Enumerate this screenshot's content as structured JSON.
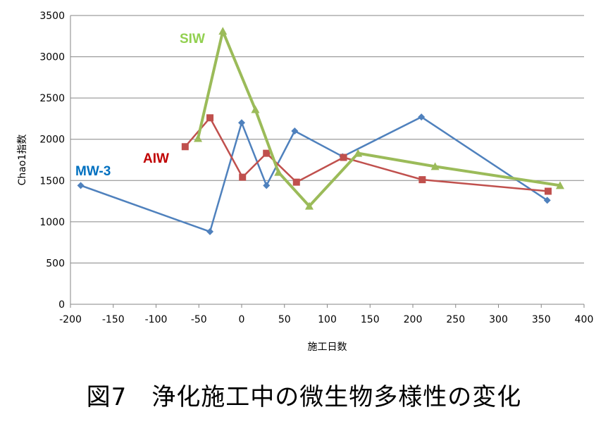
{
  "chart_data": {
    "type": "line",
    "title": "図7　浄化施工中の微生物多様性の変化",
    "xlabel": "施工日数",
    "ylabel": "Chao1指数",
    "xlim": [
      -200,
      400
    ],
    "ylim": [
      0,
      3500
    ],
    "xticks": [
      -200,
      -150,
      -100,
      -50,
      0,
      50,
      100,
      150,
      200,
      250,
      300,
      350,
      400
    ],
    "yticks": [
      0,
      500,
      1000,
      1500,
      2000,
      2500,
      3000,
      3500
    ],
    "grid": "horizontal",
    "legend": "inline labels",
    "series": [
      {
        "name": "MW-3",
        "color": "#4F81BD",
        "marker": "diamond",
        "label_color": "#0070C0",
        "x": [
          -188,
          -37,
          0,
          29,
          62,
          118,
          210,
          357
        ],
        "y": [
          1440,
          880,
          2200,
          1440,
          2100,
          1790,
          2270,
          1260
        ]
      },
      {
        "name": "AIW",
        "color": "#C0504D",
        "marker": "square",
        "label_color": "#C00000",
        "x": [
          -66,
          -37,
          1,
          29,
          64,
          119,
          211,
          358
        ],
        "y": [
          1910,
          2260,
          1540,
          1830,
          1480,
          1780,
          1510,
          1370
        ]
      },
      {
        "name": "SIW",
        "color": "#9BBB59",
        "marker": "triangle",
        "label_color": "#92D050",
        "x": [
          -51,
          -22,
          16,
          43,
          79,
          136,
          226,
          372
        ],
        "y": [
          2010,
          3310,
          2360,
          1600,
          1190,
          1830,
          1670,
          1440
        ]
      }
    ]
  }
}
